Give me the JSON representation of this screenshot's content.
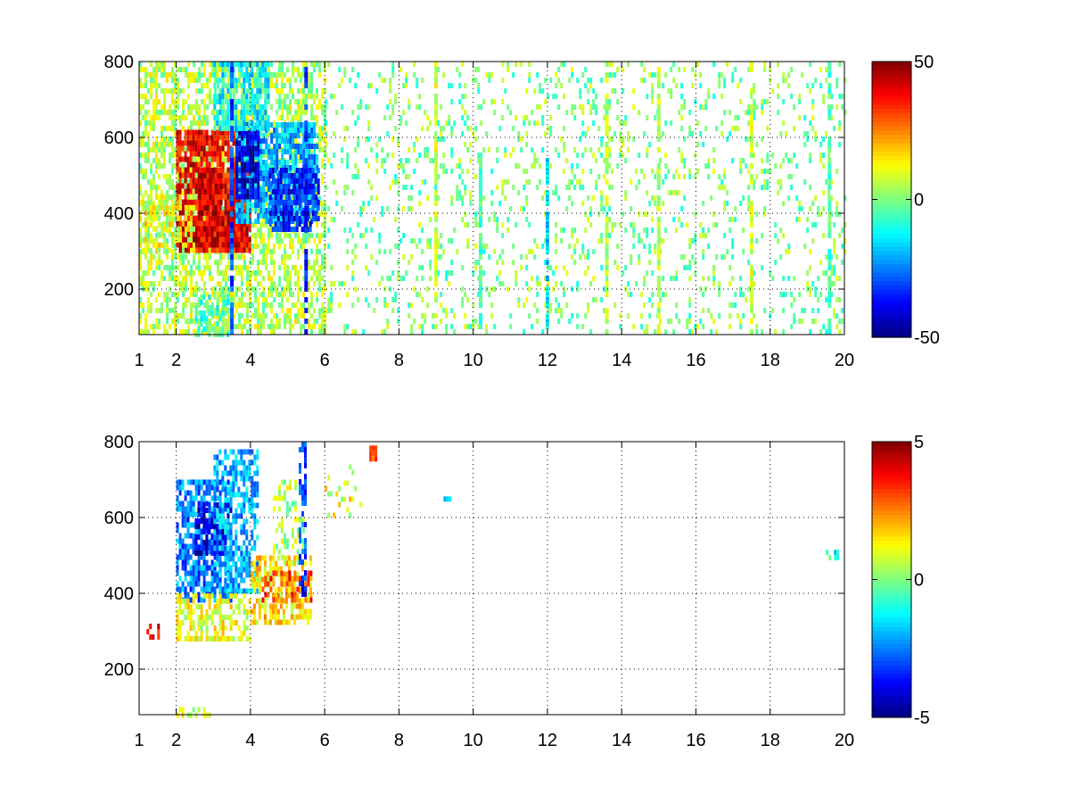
{
  "chart_data": [
    {
      "type": "heatmap",
      "xlim": [
        1,
        20
      ],
      "ylim": [
        80,
        800
      ],
      "x_ticks": [
        1,
        2,
        4,
        6,
        8,
        10,
        12,
        14,
        16,
        18,
        20
      ],
      "y_ticks": [
        200,
        400,
        600,
        800
      ],
      "grid": true,
      "colormap": "jet",
      "colorbar": {
        "min": -50,
        "max": 50,
        "ticks": [
          50,
          0,
          -50
        ],
        "placement": "right"
      },
      "patches": [
        {
          "x": [
            1.0,
            6.0
          ],
          "y": [
            80,
            800
          ],
          "value": 5,
          "density": 0.55
        },
        {
          "x": [
            2.0,
            4.0
          ],
          "y": [
            300,
            620
          ],
          "value": 38,
          "density": 0.85
        },
        {
          "x": [
            2.0,
            3.9
          ],
          "y": [
            320,
            380
          ],
          "value": 40,
          "density": 0.9
        },
        {
          "x": [
            2.6,
            3.2
          ],
          "y": [
            400,
            520
          ],
          "value": 42,
          "density": 0.9
        },
        {
          "x": [
            3.6,
            5.8
          ],
          "y": [
            380,
            640
          ],
          "value": -20,
          "density": 0.8
        },
        {
          "x": [
            3.6,
            4.2
          ],
          "y": [
            440,
            620
          ],
          "value": -42,
          "density": 0.85
        },
        {
          "x": [
            4.5,
            5.8
          ],
          "y": [
            360,
            520
          ],
          "value": -35,
          "density": 0.7
        },
        {
          "x": [
            3.0,
            4.5
          ],
          "y": [
            620,
            800
          ],
          "value": -12,
          "density": 0.7
        },
        {
          "x": [
            1.0,
            2.5
          ],
          "y": [
            300,
            450
          ],
          "value": 10,
          "density": 0.6
        },
        {
          "x": [
            2.5,
            3.5
          ],
          "y": [
            80,
            200
          ],
          "value": -5,
          "density": 0.5
        },
        {
          "x": [
            6.0,
            20.0
          ],
          "y": [
            80,
            800
          ],
          "value": 0,
          "density": 0.15
        }
      ],
      "stripes": [
        {
          "x": 3.5,
          "y": [
            80,
            800
          ],
          "value": -30
        },
        {
          "x": 5.5,
          "y": [
            80,
            800
          ],
          "value": -35
        },
        {
          "x": 9.0,
          "y": [
            80,
            800
          ],
          "value": 8
        },
        {
          "x": 10.2,
          "y": [
            100,
            560
          ],
          "value": -5
        },
        {
          "x": 12.0,
          "y": [
            100,
            560
          ],
          "value": -15
        },
        {
          "x": 13.6,
          "y": [
            80,
            800
          ],
          "value": 5
        },
        {
          "x": 15.0,
          "y": [
            80,
            800
          ],
          "value": 6
        },
        {
          "x": 17.5,
          "y": [
            80,
            800
          ],
          "value": 8
        },
        {
          "x": 19.6,
          "y": [
            80,
            800
          ],
          "value": -5
        }
      ]
    },
    {
      "type": "heatmap",
      "xlim": [
        1,
        20
      ],
      "ylim": [
        80,
        800
      ],
      "x_ticks": [
        1,
        2,
        4,
        6,
        8,
        10,
        12,
        14,
        16,
        18,
        20
      ],
      "y_ticks": [
        200,
        400,
        600,
        800
      ],
      "grid": true,
      "colormap": "jet",
      "colorbar": {
        "min": -5,
        "max": 5,
        "ticks": [
          5,
          0,
          -5
        ],
        "placement": "right"
      },
      "patches": [
        {
          "x": [
            2.0,
            3.5
          ],
          "y": [
            380,
            700
          ],
          "value": -2.5,
          "density": 0.7
        },
        {
          "x": [
            2.5,
            3.5
          ],
          "y": [
            500,
            640
          ],
          "value": -4,
          "density": 0.6
        },
        {
          "x": [
            3.0,
            4.2
          ],
          "y": [
            400,
            780
          ],
          "value": -2,
          "density": 0.6
        },
        {
          "x": [
            2.0,
            4.0
          ],
          "y": [
            280,
            400
          ],
          "value": 1,
          "density": 0.6
        },
        {
          "x": [
            4.0,
            5.6
          ],
          "y": [
            320,
            500
          ],
          "value": 1.5,
          "density": 0.6
        },
        {
          "x": [
            4.3,
            5.6
          ],
          "y": [
            380,
            460
          ],
          "value": 3,
          "density": 0.4
        },
        {
          "x": [
            4.6,
            5.4
          ],
          "y": [
            480,
            700
          ],
          "value": 0.5,
          "density": 0.3
        },
        {
          "x": [
            5.3,
            5.5
          ],
          "y": [
            400,
            800
          ],
          "value": -3,
          "density": 0.6
        },
        {
          "x": [
            2.0,
            3.0
          ],
          "y": [
            80,
            100
          ],
          "value": 1,
          "density": 0.6
        },
        {
          "x": [
            6.0,
            7.0
          ],
          "y": [
            600,
            740
          ],
          "value": 1,
          "density": 0.2
        },
        {
          "x": [
            7.2,
            7.4
          ],
          "y": [
            760,
            790
          ],
          "value": 3,
          "density": 0.8
        },
        {
          "x": [
            9.2,
            9.4
          ],
          "y": [
            650,
            670
          ],
          "value": -1,
          "density": 0.8
        },
        {
          "x": [
            19.5,
            19.8
          ],
          "y": [
            500,
            515
          ],
          "value": -1,
          "density": 0.8
        },
        {
          "x": [
            1.2,
            1.5
          ],
          "y": [
            280,
            320
          ],
          "value": 4,
          "density": 0.5
        }
      ],
      "stripes": []
    }
  ]
}
